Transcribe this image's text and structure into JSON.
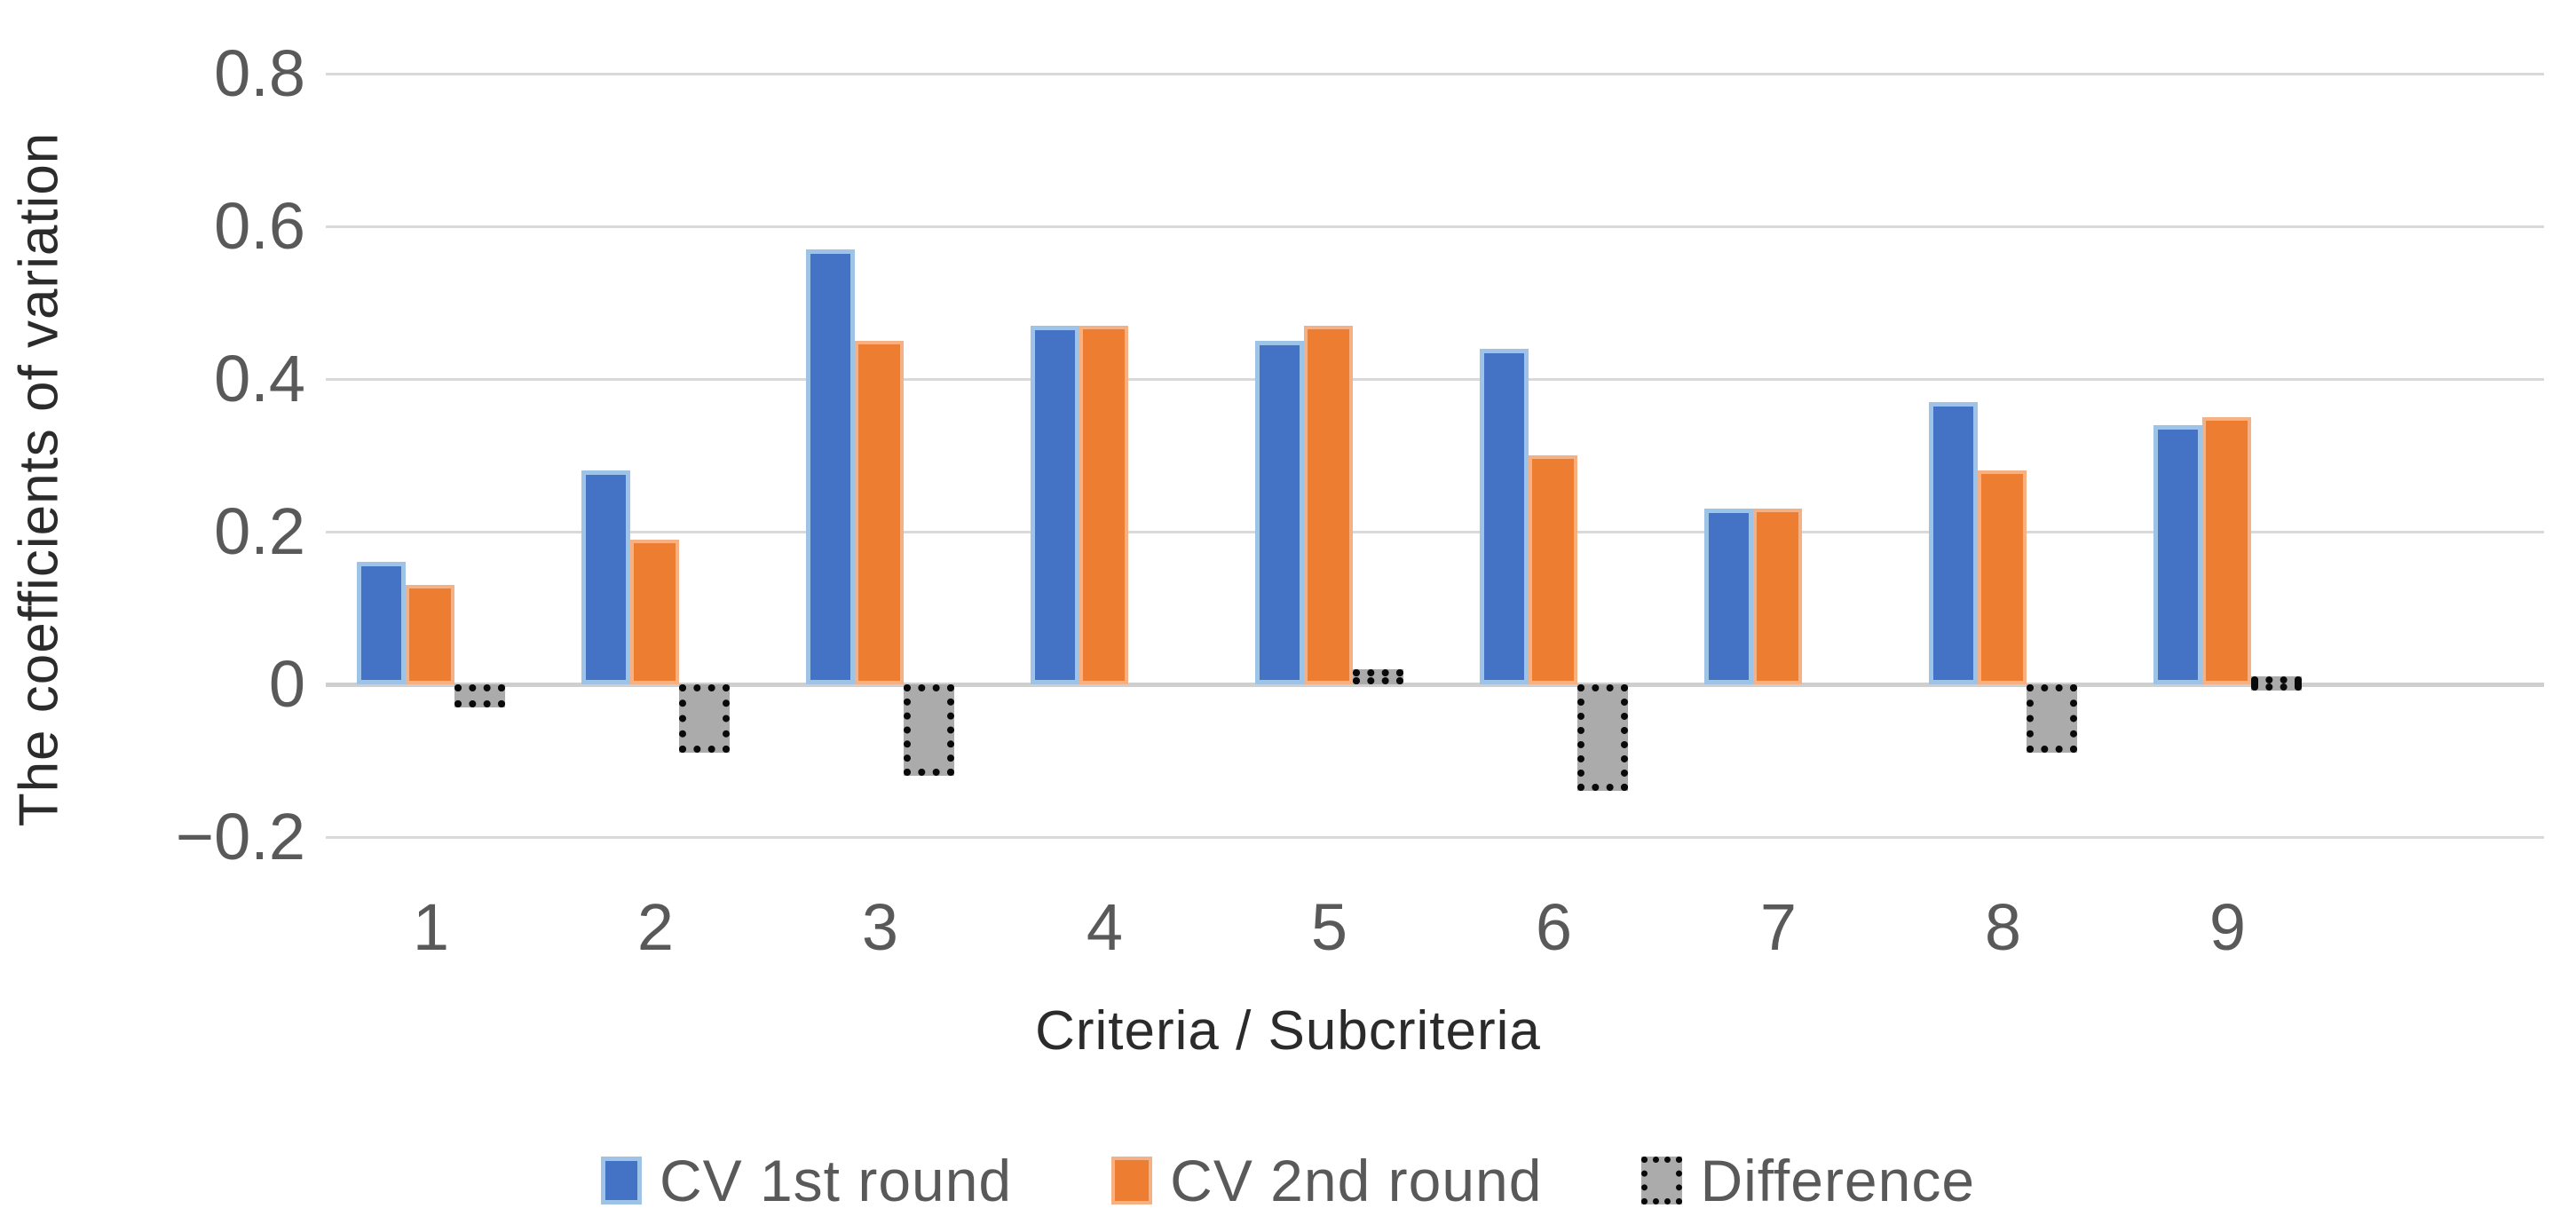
{
  "chart_data": {
    "type": "bar",
    "title": "",
    "xlabel": "Criteria / Subcriteria",
    "ylabel": "The coefficients of variation",
    "categories": [
      "1",
      "2",
      "3",
      "4",
      "5",
      "6",
      "7",
      "8",
      "9"
    ],
    "series": [
      {
        "name": "CV 1st round",
        "color": "#4472C4",
        "border_color": "#9DC3E6",
        "values": [
          0.16,
          0.28,
          0.57,
          0.47,
          0.45,
          0.44,
          0.23,
          0.37,
          0.34
        ]
      },
      {
        "name": "CV 2nd round",
        "color": "#ED7D31",
        "border_color": "#F5B183",
        "values": [
          0.13,
          0.19,
          0.45,
          0.47,
          0.47,
          0.3,
          0.23,
          0.28,
          0.35
        ]
      },
      {
        "name": "Difference",
        "color": "#ABABAB",
        "border_color": "#0A0A0A",
        "border_style": "dotted",
        "values": [
          -0.03,
          -0.09,
          -0.12,
          0.0,
          0.02,
          -0.14,
          0.0,
          -0.09,
          0.01
        ]
      }
    ],
    "ylim": [
      -0.2,
      0.8
    ],
    "ytick_labels": [
      "0.8",
      "0.6",
      "0.4",
      "0.2",
      "0",
      "−0.2"
    ],
    "ytick_values": [
      0.8,
      0.6,
      0.4,
      0.2,
      0,
      -0.2
    ],
    "grid": true,
    "legend_position": "bottom",
    "colors": {
      "gridline": "#D9D9D9",
      "axis_line": "#CFCFCF",
      "tick_text": "#595959",
      "title_text": "#2B2B2B",
      "background": "#FFFFFF"
    }
  }
}
